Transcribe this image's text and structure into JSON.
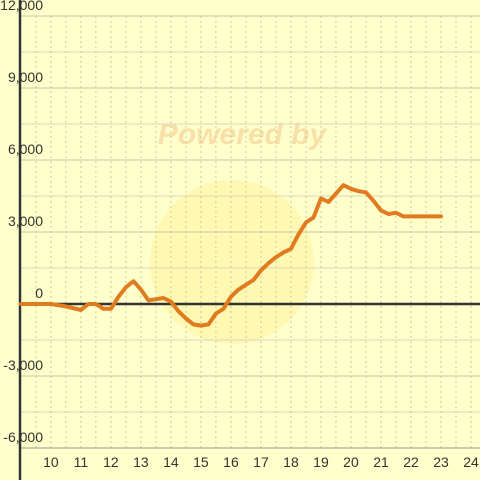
{
  "chart_data": {
    "type": "line",
    "watermark": "Powered by",
    "x": [
      9,
      10,
      10.5,
      11,
      11.25,
      11.5,
      11.75,
      12,
      12.25,
      12.5,
      12.75,
      13,
      13.25,
      13.5,
      13.75,
      14,
      14.25,
      14.5,
      14.75,
      15,
      15.25,
      15.5,
      15.75,
      16,
      16.25,
      16.5,
      16.75,
      17,
      17.25,
      17.5,
      17.75,
      18,
      18.25,
      18.5,
      18.75,
      19,
      19.25,
      19.5,
      19.75,
      20,
      20.25,
      20.5,
      20.75,
      21,
      21.25,
      21.5,
      21.75,
      22,
      22.5,
      23
    ],
    "series": [
      {
        "color": "#e07b20",
        "values": [
          0,
          0,
          -100,
          -250,
          0,
          0,
          -200,
          -200,
          300,
          700,
          950,
          600,
          150,
          200,
          250,
          100,
          -300,
          -600,
          -850,
          -900,
          -850,
          -400,
          -200,
          300,
          600,
          800,
          1000,
          1400,
          1700,
          1950,
          2150,
          2300,
          2900,
          3400,
          3600,
          4400,
          4250,
          4600,
          4950,
          4800,
          4700,
          4650,
          4300,
          3900,
          3750,
          3800,
          3650,
          3650,
          3650,
          3650
        ]
      }
    ],
    "xlim": [
      8.97,
      24.3
    ],
    "xticks": [
      10,
      11,
      12,
      13,
      14,
      15,
      16,
      17,
      18,
      19,
      20,
      21,
      22,
      23,
      24
    ],
    "ylim": [
      -6000,
      12000
    ],
    "yticks": [
      {
        "value": -6000,
        "label": "-6,000"
      },
      {
        "value": -3000,
        "label": "-3,000"
      },
      {
        "value": 0,
        "label": "0"
      },
      {
        "value": 3000,
        "label": "3,000"
      },
      {
        "value": 6000,
        "label": "6,000"
      },
      {
        "value": 9000,
        "label": "9,000"
      },
      {
        "value": 12000,
        "label": "12,000"
      }
    ],
    "grid": true
  }
}
